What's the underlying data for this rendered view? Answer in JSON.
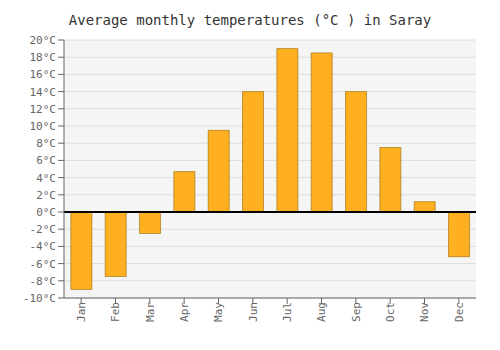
{
  "chart_data": {
    "type": "bar",
    "title": "Average monthly temperatures (°C ) in Saray",
    "categories": [
      "Jan",
      "Feb",
      "Mar",
      "Apr",
      "May",
      "Jun",
      "Jul",
      "Aug",
      "Sep",
      "Oct",
      "Nov",
      "Dec"
    ],
    "values": [
      -9,
      -7.5,
      -2.5,
      4.7,
      9.5,
      14,
      19,
      18.5,
      14,
      7.5,
      1.2,
      -5.2
    ],
    "color": "#FFB020",
    "ylim": [
      -10,
      20
    ],
    "yticks": [
      {
        "value": -10,
        "label": "-10°C"
      },
      {
        "value": -8,
        "label": "-8°C"
      },
      {
        "value": -6,
        "label": "-6°C"
      },
      {
        "value": -4,
        "label": "-4°C"
      },
      {
        "value": -2,
        "label": "-2°C"
      },
      {
        "value": 0,
        "label": "0°C"
      },
      {
        "value": 2,
        "label": "2°C"
      },
      {
        "value": 4,
        "label": "4°C"
      },
      {
        "value": 6,
        "label": "6°C"
      },
      {
        "value": 8,
        "label": "8°C"
      },
      {
        "value": 10,
        "label": "10°C"
      },
      {
        "value": 12,
        "label": "12°C"
      },
      {
        "value": 14,
        "label": "14°C"
      },
      {
        "value": 16,
        "label": "16°C"
      },
      {
        "value": 18,
        "label": "18°C"
      },
      {
        "value": 20,
        "label": "20°C"
      }
    ],
    "grid": true
  }
}
